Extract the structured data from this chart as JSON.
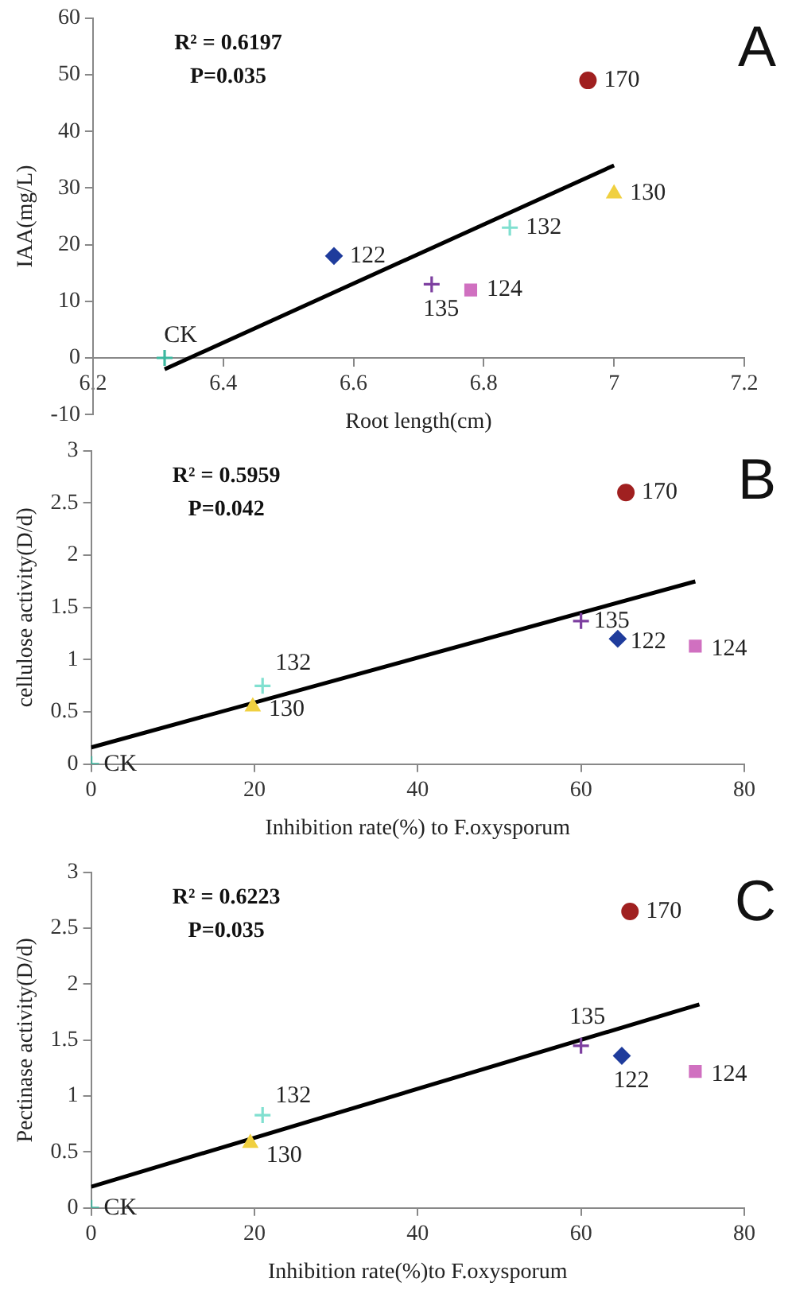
{
  "chart_data": [
    {
      "type": "scatter",
      "title": "A",
      "xlabel": "Root length(cm)",
      "ylabel": "IAA(mg/L)",
      "annotations": [
        "R² = 0.6197",
        "P=0.035"
      ],
      "xlim": [
        6.2,
        7.2
      ],
      "xticks": [
        6.2,
        6.4,
        6.6,
        6.8,
        7,
        7.2
      ],
      "ylim": [
        -10,
        60
      ],
      "yticks": [
        -10,
        0,
        10,
        20,
        30,
        40,
        50,
        60
      ],
      "grid": false,
      "legend": false,
      "series": [
        {
          "name": "CK",
          "color": "#3cb8a0",
          "marker": "cross",
          "x": [
            6.31
          ],
          "values": [
            0
          ]
        },
        {
          "name": "122",
          "color": "#1f3c9c",
          "marker": "diamond",
          "x": [
            6.57
          ],
          "values": [
            18
          ]
        },
        {
          "name": "135",
          "color": "#7d3fa0",
          "marker": "cross",
          "x": [
            6.72
          ],
          "values": [
            13
          ]
        },
        {
          "name": "124",
          "color": "#d070c0",
          "marker": "square",
          "x": [
            6.78
          ],
          "values": [
            12
          ]
        },
        {
          "name": "132",
          "color": "#80e0d0",
          "marker": "cross",
          "x": [
            6.84
          ],
          "values": [
            23
          ]
        },
        {
          "name": "170",
          "color": "#a02020",
          "marker": "circle",
          "x": [
            6.96
          ],
          "values": [
            49
          ]
        },
        {
          "name": "130",
          "color": "#f0d040",
          "marker": "triangle",
          "x": [
            7.0
          ],
          "values": [
            29
          ]
        },
        {
          "type": "line",
          "color": "#000000",
          "x": [
            6.31,
            7.0
          ],
          "values": [
            -2,
            34
          ]
        }
      ]
    },
    {
      "type": "scatter",
      "title": "B",
      "xlabel": "Inhibition rate(%) to F.oxysporum",
      "ylabel": "cellulose activity(D/d)",
      "annotations": [
        "R² = 0.5959",
        "P=0.042"
      ],
      "xlim": [
        0,
        80
      ],
      "xticks": [
        0,
        20,
        40,
        60,
        80
      ],
      "ylim": [
        0,
        3
      ],
      "yticks": [
        0,
        0.5,
        1,
        1.5,
        2,
        2.5,
        3
      ],
      "grid": false,
      "legend": false,
      "series": [
        {
          "name": "CK",
          "color": "#3cb8a0",
          "marker": "cross",
          "x": [
            0
          ],
          "values": [
            0
          ]
        },
        {
          "name": "130",
          "color": "#f0d040",
          "marker": "triangle",
          "x": [
            19.8
          ],
          "values": [
            0.55
          ]
        },
        {
          "name": "132",
          "color": "#80e0d0",
          "marker": "cross",
          "x": [
            21
          ],
          "values": [
            0.75
          ]
        },
        {
          "name": "135",
          "color": "#7d3fa0",
          "marker": "cross",
          "x": [
            60
          ],
          "values": [
            1.37
          ]
        },
        {
          "name": "122",
          "color": "#1f3c9c",
          "marker": "diamond",
          "x": [
            64.5
          ],
          "values": [
            1.2
          ]
        },
        {
          "name": "170",
          "color": "#a02020",
          "marker": "circle",
          "x": [
            65.5
          ],
          "values": [
            2.6
          ]
        },
        {
          "name": "124",
          "color": "#d070c0",
          "marker": "square",
          "x": [
            74
          ],
          "values": [
            1.13
          ]
        },
        {
          "type": "line",
          "color": "#000000",
          "x": [
            0,
            74
          ],
          "values": [
            0.16,
            1.75
          ]
        }
      ]
    },
    {
      "type": "scatter",
      "title": "C",
      "xlabel": "Inhibition rate(%)to F.oxysporum",
      "ylabel": "Pectinase activity(D/d)",
      "annotations": [
        "R² = 0.6223",
        "P=0.035"
      ],
      "xlim": [
        0,
        80
      ],
      "xticks": [
        0,
        20,
        40,
        60,
        80
      ],
      "ylim": [
        0,
        3
      ],
      "yticks": [
        0,
        0.5,
        1,
        1.5,
        2,
        2.5,
        3
      ],
      "grid": false,
      "legend": false,
      "series": [
        {
          "name": "CK",
          "color": "#3cb8a0",
          "marker": "cross",
          "x": [
            0
          ],
          "values": [
            0
          ]
        },
        {
          "name": "130",
          "color": "#f0d040",
          "marker": "triangle",
          "x": [
            19.5
          ],
          "values": [
            0.58
          ]
        },
        {
          "name": "132",
          "color": "#80e0d0",
          "marker": "cross",
          "x": [
            21
          ],
          "values": [
            0.83
          ]
        },
        {
          "name": "135",
          "color": "#7d3fa0",
          "marker": "cross",
          "x": [
            60
          ],
          "values": [
            1.45
          ]
        },
        {
          "name": "122",
          "color": "#1f3c9c",
          "marker": "diamond",
          "x": [
            65
          ],
          "values": [
            1.36
          ]
        },
        {
          "name": "170",
          "color": "#a02020",
          "marker": "circle",
          "x": [
            66
          ],
          "values": [
            2.65
          ]
        },
        {
          "name": "124",
          "color": "#d070c0",
          "marker": "square",
          "x": [
            74
          ],
          "values": [
            1.22
          ]
        },
        {
          "type": "line",
          "color": "#000000",
          "x": [
            0,
            74.5
          ],
          "values": [
            0.19,
            1.82
          ]
        }
      ]
    }
  ]
}
